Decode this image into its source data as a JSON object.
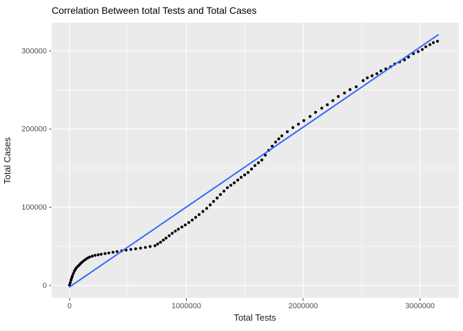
{
  "chart_data": {
    "type": "scatter",
    "title": "Correlation Between total Tests and Total Cases",
    "xlabel": "Total Tests",
    "ylabel": "Total Cases",
    "x_tick_values": [
      0,
      1000000,
      2000000,
      3000000
    ],
    "x_tick_labels": [
      "0",
      "1000000",
      "2000000",
      "3000000"
    ],
    "y_tick_values": [
      0,
      100000,
      200000,
      300000
    ],
    "y_tick_labels": [
      "0",
      "100000",
      "200000",
      "300000"
    ],
    "x_minor_values": [
      500000,
      1500000,
      2500000
    ],
    "y_minor_values": [
      50000,
      150000,
      250000
    ],
    "xlim": [
      -153000,
      3333000
    ],
    "ylim": [
      -16000,
      336000
    ],
    "grid": "on",
    "legend": "none",
    "colors": {
      "points": "#000000",
      "smooth_line": "#3366FF",
      "panel_bg": "#EBEBEB",
      "grid_major": "#FFFFFF",
      "grid_minor": "#FFFFFF",
      "tick_mark": "#333333",
      "axis_text": "#4D4D4D",
      "title_text": "#000000",
      "background": "#FFFFFF"
    },
    "smooth_line": {
      "x": [
        0,
        3156000
      ],
      "y": [
        -2000,
        320600
      ]
    },
    "points": [
      [
        0,
        500
      ],
      [
        6000,
        3500
      ],
      [
        12000,
        6600
      ],
      [
        18000,
        9400
      ],
      [
        24000,
        11900
      ],
      [
        32000,
        15100
      ],
      [
        41000,
        18100
      ],
      [
        50000,
        20400
      ],
      [
        59000,
        22500
      ],
      [
        71000,
        24400
      ],
      [
        83000,
        26100
      ],
      [
        94000,
        27900
      ],
      [
        106000,
        29600
      ],
      [
        121000,
        31500
      ],
      [
        136000,
        33100
      ],
      [
        153000,
        34800
      ],
      [
        171000,
        36200
      ],
      [
        194000,
        37400
      ],
      [
        218000,
        38400
      ],
      [
        245000,
        39100
      ],
      [
        271000,
        39800
      ],
      [
        304000,
        40700
      ],
      [
        336000,
        41500
      ],
      [
        372000,
        42400
      ],
      [
        407000,
        43300
      ],
      [
        446000,
        44200
      ],
      [
        484000,
        45100
      ],
      [
        525000,
        46000
      ],
      [
        566000,
        46800
      ],
      [
        608000,
        47700
      ],
      [
        649000,
        48600
      ],
      [
        690000,
        49700
      ],
      [
        732000,
        50800
      ],
      [
        755000,
        53000
      ],
      [
        779000,
        55200
      ],
      [
        803000,
        57900
      ],
      [
        826000,
        60500
      ],
      [
        853000,
        63600
      ],
      [
        879000,
        66700
      ],
      [
        906000,
        69400
      ],
      [
        932000,
        72000
      ],
      [
        962000,
        74700
      ],
      [
        991000,
        77300
      ],
      [
        1021000,
        80400
      ],
      [
        1050000,
        83500
      ],
      [
        1080000,
        87000
      ],
      [
        1109000,
        90600
      ],
      [
        1142000,
        94600
      ],
      [
        1174000,
        98500
      ],
      [
        1204000,
        103000
      ],
      [
        1233000,
        107400
      ],
      [
        1263000,
        111800
      ],
      [
        1292000,
        116200
      ],
      [
        1322000,
        120600
      ],
      [
        1351000,
        125000
      ],
      [
        1381000,
        128100
      ],
      [
        1410000,
        131200
      ],
      [
        1440000,
        134800
      ],
      [
        1469000,
        138300
      ],
      [
        1499000,
        141400
      ],
      [
        1528000,
        144500
      ],
      [
        1558000,
        148900
      ],
      [
        1587000,
        153300
      ],
      [
        1617000,
        156900
      ],
      [
        1646000,
        160400
      ],
      [
        1676000,
        166600
      ],
      [
        1705000,
        172800
      ],
      [
        1735000,
        178100
      ],
      [
        1764000,
        183400
      ],
      [
        1791000,
        187400
      ],
      [
        1817000,
        191300
      ],
      [
        1864000,
        196600
      ],
      [
        1912000,
        201900
      ],
      [
        1959000,
        206300
      ],
      [
        2006000,
        210800
      ],
      [
        2059000,
        216100
      ],
      [
        2106000,
        221400
      ],
      [
        2159000,
        226700
      ],
      [
        2207000,
        231100
      ],
      [
        2254000,
        236400
      ],
      [
        2301000,
        241700
      ],
      [
        2354000,
        246100
      ],
      [
        2401000,
        250500
      ],
      [
        2454000,
        254100
      ],
      [
        2513000,
        262000
      ],
      [
        2549000,
        265600
      ],
      [
        2590000,
        268200
      ],
      [
        2631000,
        270900
      ],
      [
        2666000,
        274400
      ],
      [
        2708000,
        277100
      ],
      [
        2749000,
        279700
      ],
      [
        2784000,
        283200
      ],
      [
        2826000,
        285900
      ],
      [
        2867000,
        288500
      ],
      [
        2902000,
        292100
      ],
      [
        2944000,
        296500
      ],
      [
        2985000,
        299100
      ],
      [
        3020000,
        301800
      ],
      [
        3050000,
        305300
      ],
      [
        3085000,
        308000
      ],
      [
        3115000,
        310600
      ],
      [
        3150000,
        312400
      ]
    ],
    "point_radius": 2.1
  }
}
